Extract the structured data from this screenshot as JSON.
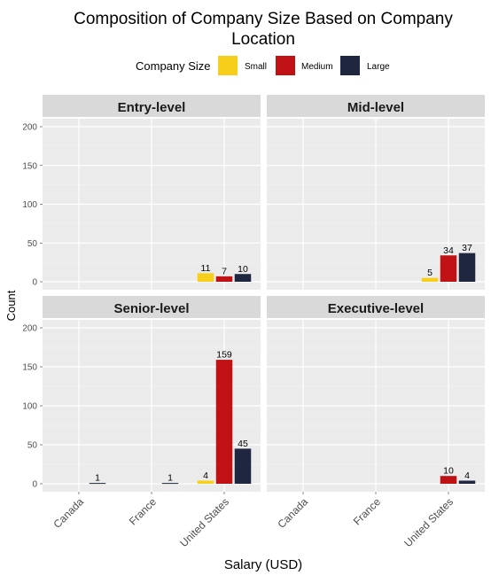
{
  "chart_data": {
    "type": "bar",
    "title": "Composition of Company Size Based on Company Location",
    "title_lines": [
      "Composition of Company Size Based on Company",
      "Location"
    ],
    "xlabel": "Salary (USD)",
    "ylabel": "Count",
    "legend": {
      "title": "Company Size",
      "placement": "top",
      "entries": [
        "Small",
        "Medium",
        "Large"
      ]
    },
    "categories": [
      "Canada",
      "France",
      "United States"
    ],
    "ylim": [
      0,
      210
    ],
    "yticks": [
      0,
      50,
      100,
      150,
      200
    ],
    "grid": true,
    "colors": {
      "Small": "#F7CF1B",
      "Medium": "#C01215",
      "Large": "#1E2640"
    },
    "facets": [
      {
        "name": "Entry-level",
        "series": [
          {
            "name": "Small",
            "values": [
              null,
              null,
              11
            ]
          },
          {
            "name": "Medium",
            "values": [
              null,
              null,
              7
            ]
          },
          {
            "name": "Large",
            "values": [
              null,
              null,
              10
            ]
          }
        ]
      },
      {
        "name": "Mid-level",
        "series": [
          {
            "name": "Small",
            "values": [
              null,
              null,
              5
            ]
          },
          {
            "name": "Medium",
            "values": [
              null,
              null,
              34
            ]
          },
          {
            "name": "Large",
            "values": [
              null,
              null,
              37
            ]
          }
        ]
      },
      {
        "name": "Senior-level",
        "series": [
          {
            "name": "Small",
            "values": [
              null,
              null,
              4
            ]
          },
          {
            "name": "Medium",
            "values": [
              null,
              null,
              159
            ]
          },
          {
            "name": "Large",
            "values": [
              1,
              1,
              45
            ]
          }
        ]
      },
      {
        "name": "Executive-level",
        "series": [
          {
            "name": "Small",
            "values": [
              null,
              null,
              null
            ]
          },
          {
            "name": "Medium",
            "values": [
              null,
              null,
              10
            ]
          },
          {
            "name": "Large",
            "values": [
              null,
              null,
              4
            ]
          }
        ]
      }
    ]
  }
}
